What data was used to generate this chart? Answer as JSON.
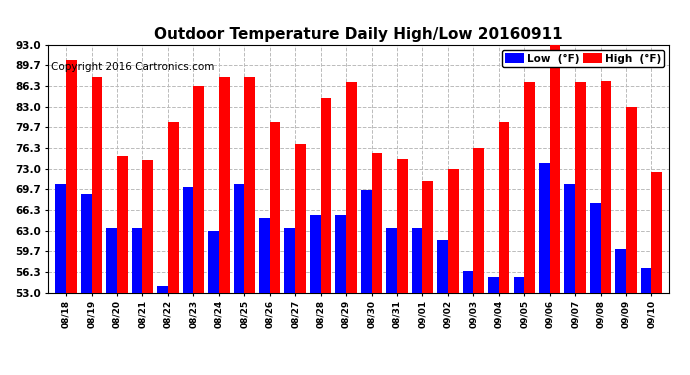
{
  "title": "Outdoor Temperature Daily High/Low 20160911",
  "copyright": "Copyright 2016 Cartronics.com",
  "legend_low": "Low  (°F)",
  "legend_high": "High  (°F)",
  "dates": [
    "08/18",
    "08/19",
    "08/20",
    "08/21",
    "08/22",
    "08/23",
    "08/24",
    "08/25",
    "08/26",
    "08/27",
    "08/28",
    "08/29",
    "08/30",
    "08/31",
    "09/01",
    "09/02",
    "09/03",
    "09/04",
    "09/05",
    "09/06",
    "09/07",
    "09/08",
    "09/09",
    "09/10"
  ],
  "highs": [
    90.5,
    87.9,
    75.1,
    74.4,
    80.5,
    86.3,
    87.9,
    87.9,
    80.5,
    77.0,
    84.5,
    87.0,
    75.5,
    74.5,
    71.0,
    73.0,
    76.3,
    80.5,
    87.0,
    93.0,
    87.0,
    87.2,
    83.0,
    72.5
  ],
  "lows": [
    70.5,
    69.0,
    63.5,
    63.5,
    54.0,
    70.0,
    63.0,
    70.5,
    65.0,
    63.5,
    65.5,
    65.5,
    69.5,
    63.5,
    63.5,
    61.5,
    56.5,
    55.5,
    55.5,
    74.0,
    70.5,
    67.5,
    60.0,
    57.0
  ],
  "ylim_min": 53.0,
  "ylim_max": 93.0,
  "yticks": [
    53.0,
    56.3,
    59.7,
    63.0,
    66.3,
    69.7,
    73.0,
    76.3,
    79.7,
    83.0,
    86.3,
    89.7,
    93.0
  ],
  "high_color": "#ff0000",
  "low_color": "#0000ff",
  "bg_color": "#ffffff",
  "grid_color": "#bbbbbb",
  "title_fontsize": 11,
  "copyright_fontsize": 7.5
}
